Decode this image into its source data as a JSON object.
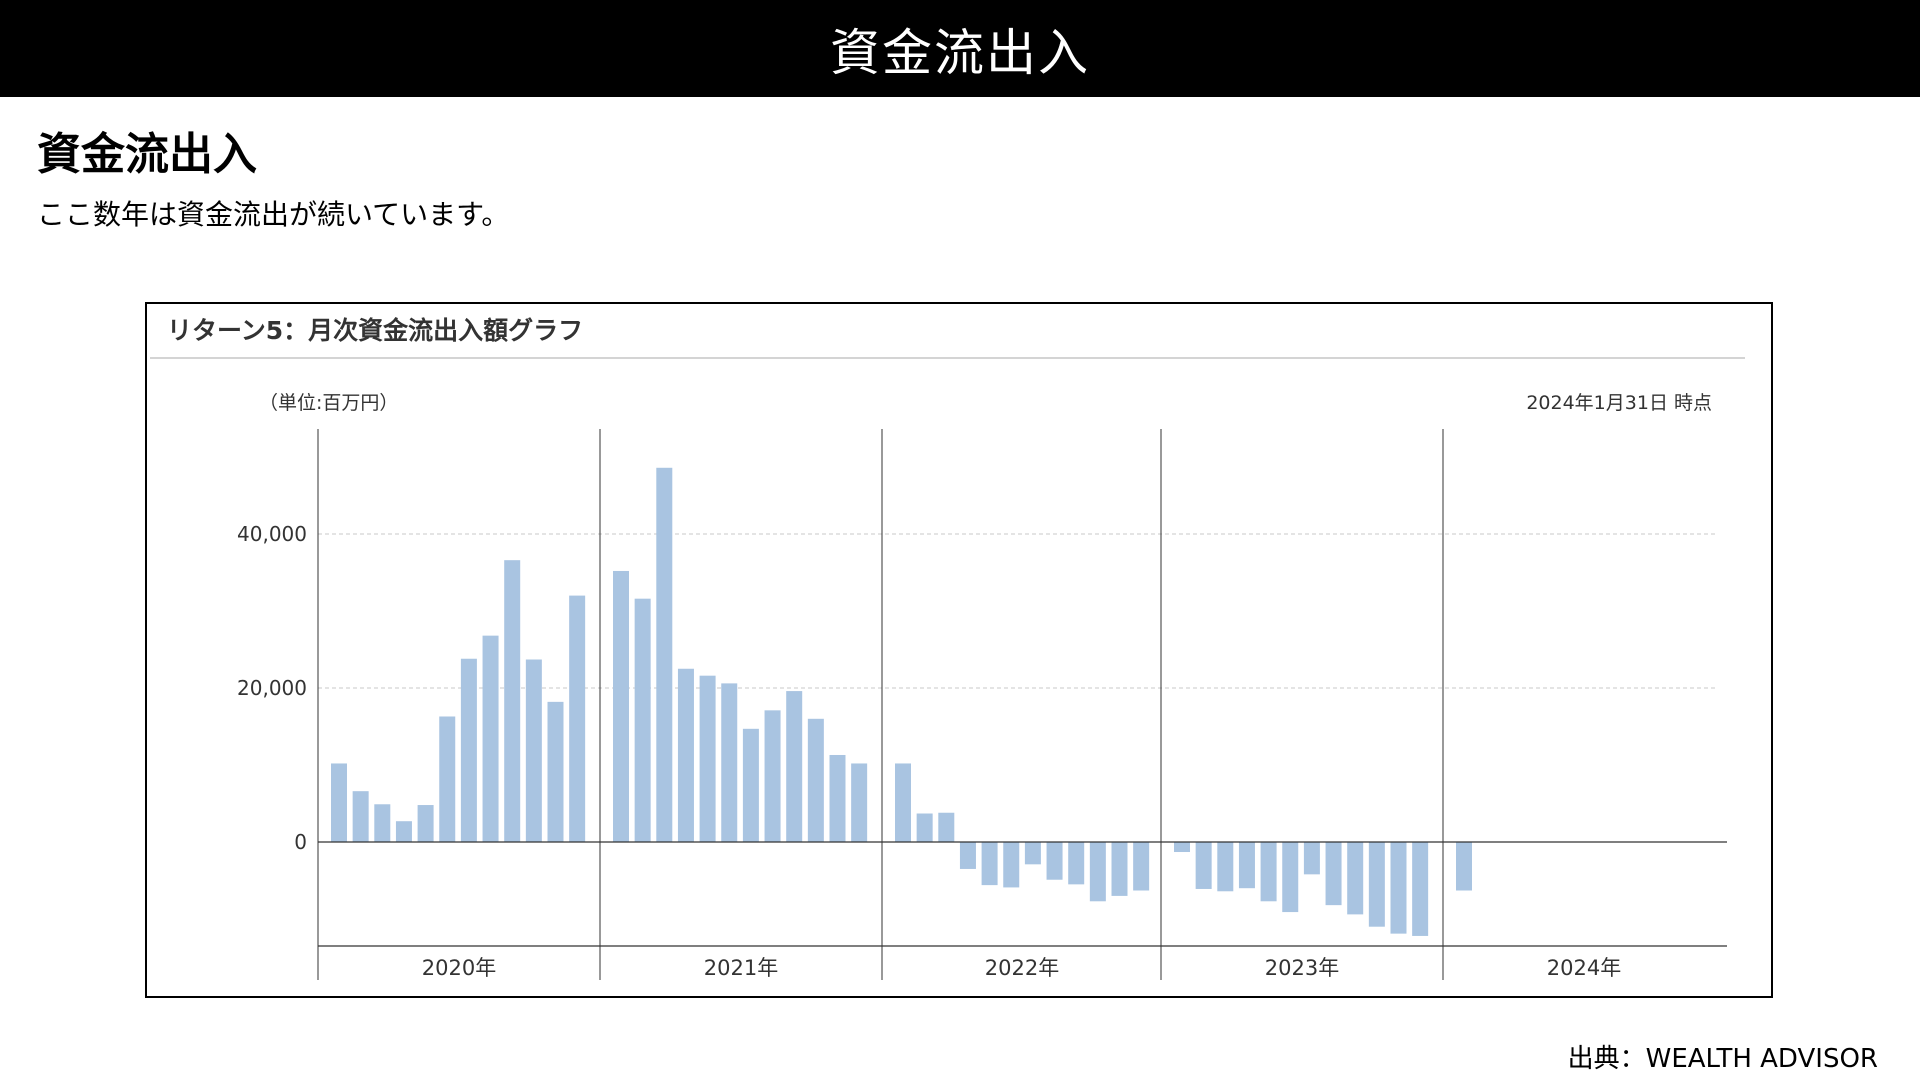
{
  "header": {
    "title": "資金流出入"
  },
  "content": {
    "heading": "資金流出入",
    "subtitle": "ここ数年は資金流出が続いています。",
    "source": "出典：WEALTH ADVISOR"
  },
  "chart_data": {
    "type": "bar",
    "title": "リターン5：月次資金流出入額グラフ",
    "unit_label": "（単位:百万円）",
    "as_of": "2024年1月31日 時点",
    "year_labels": [
      "2020年",
      "2021年",
      "2022年",
      "2023年",
      "2024年"
    ],
    "y_ticks": [
      0,
      20000,
      40000
    ],
    "y_tick_labels": [
      "0",
      "20,000",
      "40,000"
    ],
    "ylim": [
      -13500,
      53000
    ],
    "grid": "dashed horizontal at 20,000 and 40,000",
    "bar_color": "#a9c4e1",
    "series": [
      {
        "values": [
          10200,
          6600,
          4900,
          2700,
          4800,
          16300,
          23800,
          26800,
          36600,
          23700,
          18200,
          32000,
          35200,
          31600,
          48600,
          22500,
          21600,
          20600,
          14700,
          17100,
          19600,
          16000,
          11300,
          10200,
          10200,
          3700,
          3800,
          -3500,
          -5600,
          -5900,
          -2900,
          -4900,
          -5500,
          -7700,
          -7000,
          -6300,
          -1300,
          -6100,
          -6400,
          -6000,
          -7700,
          -9100,
          -4200,
          -8200,
          -9400,
          -11000,
          -11900,
          -12200,
          -6300
        ]
      }
    ]
  }
}
